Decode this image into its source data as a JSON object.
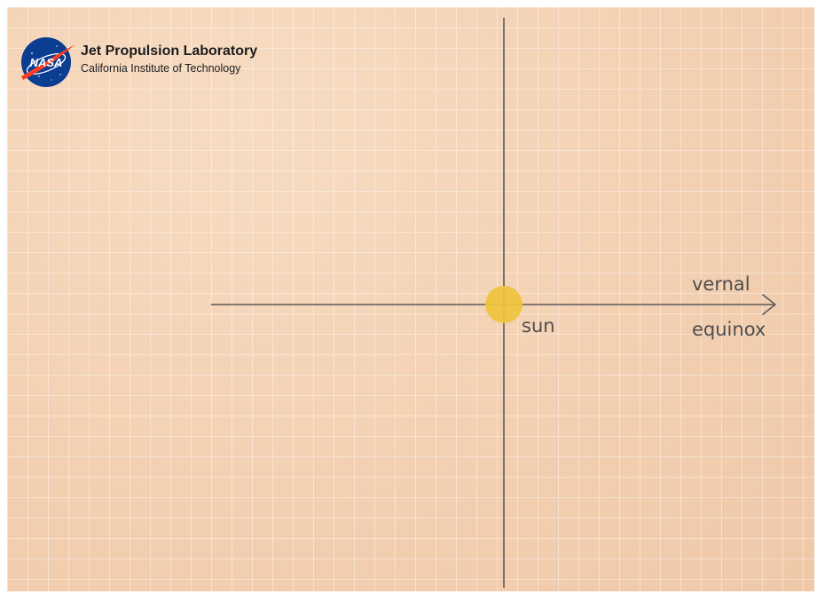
{
  "header": {
    "agency_logo_text": "NASA",
    "organization": "Jet Propulsion Laboratory",
    "subtitle": "California Institute of Technology"
  },
  "diagram": {
    "sun_label": "sun",
    "direction_label_line1": "vernal",
    "direction_label_line2": "equinox"
  },
  "colors": {
    "background": "#f3d0b2",
    "grid": "#ffffff",
    "axis": "#5a5a5a",
    "sun": "#efc33c",
    "nasa_blue": "#0b3d91",
    "nasa_red": "#fc3d21"
  },
  "icons": [
    "nasa-meatball-logo"
  ]
}
